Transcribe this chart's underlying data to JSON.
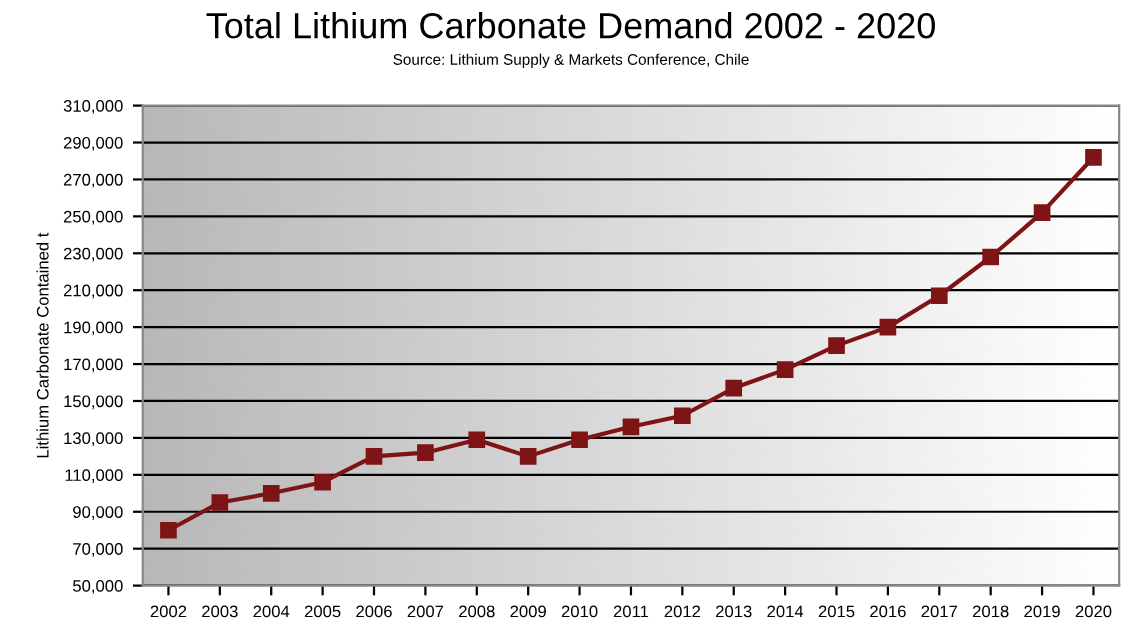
{
  "chart_data": {
    "type": "line",
    "title": "Total Lithium Carbonate Demand 2002 - 2020",
    "subtitle": "Source: Lithium Supply & Markets Conference, Chile",
    "ylabel": "Lithium Carbonate Contained t",
    "categories": [
      "2002",
      "2003",
      "2004",
      "2005",
      "2006",
      "2007",
      "2008",
      "2009",
      "2010",
      "2011",
      "2012",
      "2013",
      "2014",
      "2015",
      "2016",
      "2017",
      "2018",
      "2019",
      "2020"
    ],
    "series": [
      {
        "color": "#7f1416",
        "values": [
          80000,
          95000,
          100000,
          106000,
          120000,
          122000,
          129000,
          120000,
          129000,
          136000,
          142000,
          157000,
          167000,
          180000,
          190000,
          207000,
          228000,
          252000,
          282000
        ]
      }
    ],
    "ylim": [
      50000,
      310000
    ],
    "yticks": [
      {
        "value": 50000,
        "label": "50,000"
      },
      {
        "value": 70000,
        "label": "70,000"
      },
      {
        "value": 90000,
        "label": "90,000"
      },
      {
        "value": 110000,
        "label": "110,000"
      },
      {
        "value": 130000,
        "label": "130,000"
      },
      {
        "value": 150000,
        "label": "150,000"
      },
      {
        "value": 170000,
        "label": "170,000"
      },
      {
        "value": 190000,
        "label": "190,000"
      },
      {
        "value": 210000,
        "label": "210,000"
      },
      {
        "value": 230000,
        "label": "230,000"
      },
      {
        "value": 250000,
        "label": "250,000"
      },
      {
        "value": 270000,
        "label": "270,000"
      },
      {
        "value": 290000,
        "label": "290,000"
      },
      {
        "value": 310000,
        "label": "310,000"
      }
    ],
    "grid": "y",
    "marker": "square",
    "line_style": "solid",
    "legend": false
  }
}
